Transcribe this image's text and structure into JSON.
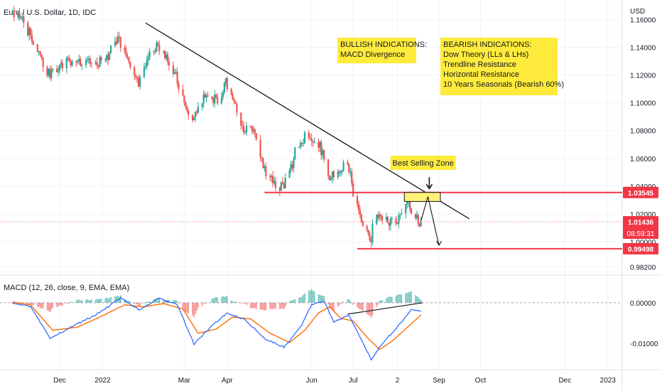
{
  "chart_data": {
    "type": "candlestick",
    "title": "Euro / U.S. Dollar, 1D, IDC",
    "currency": "USD",
    "price_axis": {
      "ylim": [
        0.976,
        1.174
      ],
      "ticks": [
        "1.16000",
        "1.14000",
        "1.12000",
        "1.10000",
        "1.08000",
        "1.06000",
        "1.04000",
        "1.02000",
        "1.00000",
        "0.98200"
      ],
      "tick_values": [
        1.16,
        1.14,
        1.12,
        1.1,
        1.08,
        1.06,
        1.04,
        1.02,
        1.0,
        0.982
      ]
    },
    "time_axis": {
      "labels": [
        "Dec",
        "2022",
        "Mar",
        "Apr",
        "Jun",
        "Jul",
        "2",
        "Sep",
        "Oct",
        "Dec",
        "2023"
      ],
      "label_dates": [
        "2021-12-01",
        "2022-01-01",
        "2022-03-01",
        "2022-04-01",
        "2022-06-01",
        "2022-07-01",
        "2022-08-02",
        "2022-09-01",
        "2022-10-01",
        "2022-12-01",
        "2023-01-01"
      ]
    },
    "price_anchors": [
      {
        "date": "2021-10-28",
        "price": 1.166
      },
      {
        "date": "2021-11-04",
        "price": 1.16
      },
      {
        "date": "2021-11-12",
        "price": 1.146
      },
      {
        "date": "2021-11-24",
        "price": 1.12
      },
      {
        "date": "2021-12-06",
        "price": 1.129
      },
      {
        "date": "2021-12-20",
        "price": 1.129
      },
      {
        "date": "2022-01-03",
        "price": 1.13
      },
      {
        "date": "2022-01-13",
        "price": 1.146
      },
      {
        "date": "2022-01-27",
        "price": 1.114
      },
      {
        "date": "2022-02-10",
        "price": 1.143
      },
      {
        "date": "2022-02-24",
        "price": 1.119
      },
      {
        "date": "2022-03-07",
        "price": 1.085
      },
      {
        "date": "2022-03-17",
        "price": 1.108
      },
      {
        "date": "2022-03-28",
        "price": 1.098
      },
      {
        "date": "2022-03-31",
        "price": 1.116
      },
      {
        "date": "2022-04-14",
        "price": 1.081
      },
      {
        "date": "2022-04-21",
        "price": 1.084
      },
      {
        "date": "2022-04-28",
        "price": 1.051
      },
      {
        "date": "2022-05-12",
        "price": 1.038
      },
      {
        "date": "2022-05-24",
        "price": 1.072
      },
      {
        "date": "2022-05-30",
        "price": 1.078
      },
      {
        "date": "2022-06-07",
        "price": 1.07
      },
      {
        "date": "2022-06-15",
        "price": 1.046
      },
      {
        "date": "2022-06-27",
        "price": 1.058
      },
      {
        "date": "2022-06-30",
        "price": 1.045
      },
      {
        "date": "2022-07-06",
        "price": 1.018
      },
      {
        "date": "2022-07-14",
        "price": 1.001
      },
      {
        "date": "2022-07-20",
        "price": 1.022
      },
      {
        "date": "2022-07-27",
        "price": 1.013
      },
      {
        "date": "2022-08-05",
        "price": 1.018
      },
      {
        "date": "2022-08-10",
        "price": 1.03
      },
      {
        "date": "2022-08-16",
        "price": 1.017
      },
      {
        "date": "2022-08-19",
        "price": 1.0144
      }
    ],
    "macd": {
      "label": "MACD (12, 26, close, 9, EMA, EMA)",
      "ylim": [
        -0.0165,
        0.0063
      ],
      "ticks": [
        "0.00000",
        "-0.01000"
      ],
      "tick_values": [
        0.0,
        -0.01
      ],
      "macd_anchors": [
        {
          "date": "2021-10-28",
          "value": -0.0002
        },
        {
          "date": "2021-11-10",
          "value": -0.001
        },
        {
          "date": "2021-11-24",
          "value": -0.0088
        },
        {
          "date": "2021-12-08",
          "value": -0.0062
        },
        {
          "date": "2021-12-28",
          "value": -0.0028
        },
        {
          "date": "2022-01-14",
          "value": 0.0011
        },
        {
          "date": "2022-01-28",
          "value": -0.0018
        },
        {
          "date": "2022-02-10",
          "value": 0.0012
        },
        {
          "date": "2022-02-24",
          "value": -0.0005
        },
        {
          "date": "2022-03-08",
          "value": -0.0102
        },
        {
          "date": "2022-03-20",
          "value": -0.006
        },
        {
          "date": "2022-04-01",
          "value": -0.0025
        },
        {
          "date": "2022-04-14",
          "value": -0.0042
        },
        {
          "date": "2022-04-28",
          "value": -0.0088
        },
        {
          "date": "2022-05-12",
          "value": -0.011
        },
        {
          "date": "2022-05-24",
          "value": -0.006
        },
        {
          "date": "2022-06-01",
          "value": -0.0005
        },
        {
          "date": "2022-06-10",
          "value": 0.0005
        },
        {
          "date": "2022-06-17",
          "value": -0.0048
        },
        {
          "date": "2022-06-28",
          "value": -0.003
        },
        {
          "date": "2022-07-06",
          "value": -0.0085
        },
        {
          "date": "2022-07-14",
          "value": -0.014
        },
        {
          "date": "2022-07-22",
          "value": -0.01
        },
        {
          "date": "2022-08-05",
          "value": -0.0048
        },
        {
          "date": "2022-08-12",
          "value": -0.0015
        },
        {
          "date": "2022-08-19",
          "value": -0.0022
        }
      ],
      "signal_anchors": [
        {
          "date": "2021-10-28",
          "value": 0.0002
        },
        {
          "date": "2021-11-10",
          "value": -0.0005
        },
        {
          "date": "2021-11-26",
          "value": -0.0068
        },
        {
          "date": "2021-12-14",
          "value": -0.006
        },
        {
          "date": "2021-12-30",
          "value": -0.0035
        },
        {
          "date": "2022-01-17",
          "value": -0.0005
        },
        {
          "date": "2022-01-31",
          "value": -0.001
        },
        {
          "date": "2022-02-14",
          "value": -0.0002
        },
        {
          "date": "2022-02-28",
          "value": -0.0015
        },
        {
          "date": "2022-03-11",
          "value": -0.0075
        },
        {
          "date": "2022-03-24",
          "value": -0.0065
        },
        {
          "date": "2022-04-05",
          "value": -0.0035
        },
        {
          "date": "2022-04-18",
          "value": -0.004
        },
        {
          "date": "2022-05-02",
          "value": -0.0075
        },
        {
          "date": "2022-05-16",
          "value": -0.0098
        },
        {
          "date": "2022-05-27",
          "value": -0.0068
        },
        {
          "date": "2022-06-06",
          "value": -0.0025
        },
        {
          "date": "2022-06-14",
          "value": -0.001
        },
        {
          "date": "2022-06-22",
          "value": -0.0038
        },
        {
          "date": "2022-07-01",
          "value": -0.0045
        },
        {
          "date": "2022-07-11",
          "value": -0.0085
        },
        {
          "date": "2022-07-20",
          "value": -0.0115
        },
        {
          "date": "2022-07-29",
          "value": -0.0095
        },
        {
          "date": "2022-08-10",
          "value": -0.0058
        },
        {
          "date": "2022-08-19",
          "value": -0.003
        }
      ]
    },
    "horizontal_levels": [
      {
        "label": "1.03545",
        "value": 1.03545,
        "color": "#f23645",
        "from_date": "2022-04-28",
        "to_date": "2023-01-31"
      },
      {
        "label": "0.99498",
        "value": 0.99498,
        "color": "#f23645",
        "from_date": "2022-07-04",
        "to_date": "2023-01-31"
      }
    ],
    "last_price": {
      "label": "1.01436",
      "value": 1.01436,
      "countdown": "08:59:31",
      "color": "#f23645"
    },
    "trendline": [
      {
        "date": "2022-02-01",
        "price": 1.1575
      },
      {
        "date": "2022-09-23",
        "price": 1.0165
      }
    ],
    "macd_divergence_line": [
      {
        "date": "2022-06-27",
        "value": -0.0028
      },
      {
        "date": "2022-08-20",
        "value": 0.0
      }
    ],
    "selling_zone": {
      "label": "Best Selling Zone",
      "from_date": "2022-08-07",
      "to_date": "2022-09-02",
      "low": 1.029,
      "high": 1.0355
    },
    "annotations": [
      {
        "title": "BULLISH INDICATIONS:",
        "lines": [
          "MACD Divergence"
        ]
      },
      {
        "title": "BEARISH INDICATIONS:",
        "lines": [
          "Dow Theory (LLs & LHs)",
          "Trendline Resistance",
          "Horizontal Resistance",
          "10 Years Seasonals (Bearish 60%)"
        ]
      }
    ],
    "colors": {
      "bull": "#26a69a",
      "bear": "#ef5350",
      "macd_line": "#2962ff",
      "signal_line": "#ff6d00",
      "annotation_bg": "#ffeb3b",
      "level": "#f23645"
    }
  }
}
